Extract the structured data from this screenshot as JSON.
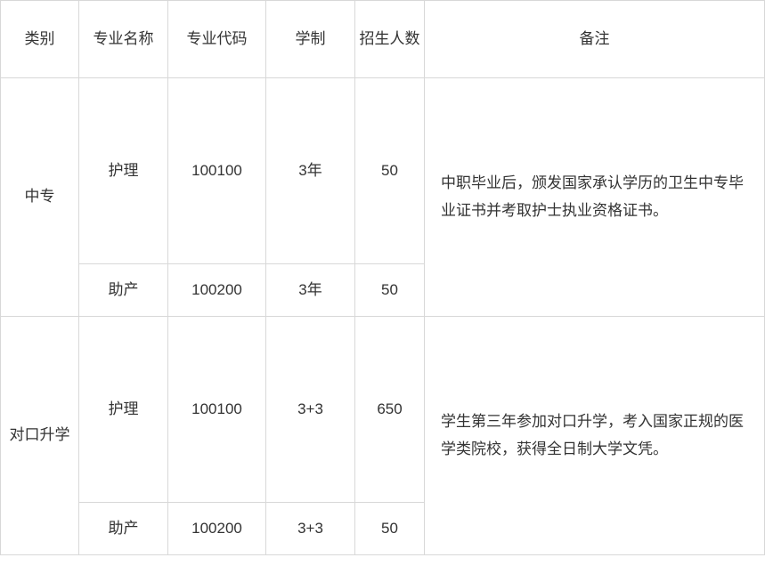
{
  "headers": {
    "category": "类别",
    "major": "专业名称",
    "code": "专业代码",
    "duration": "学制",
    "count": "招生人数",
    "note": "备注"
  },
  "groups": [
    {
      "category": "中专",
      "note": "中职毕业后，颁发国家承认学历的卫生中专毕业证书并考取护士执业资格证书。",
      "rows": [
        {
          "major": "护理",
          "code": "100100",
          "duration": "3年",
          "count": "50"
        },
        {
          "major": "助产",
          "code": "100200",
          "duration": "3年",
          "count": "50"
        }
      ]
    },
    {
      "category": "对口升学",
      "note": "学生第三年参加对口升学，考入国家正规的医学类院校，获得全日制大学文凭。",
      "rows": [
        {
          "major": "护理",
          "code": "100100",
          "duration": "3+3",
          "count": "650"
        },
        {
          "major": "助产",
          "code": "100200",
          "duration": "3+3",
          "count": "50"
        }
      ]
    }
  ]
}
